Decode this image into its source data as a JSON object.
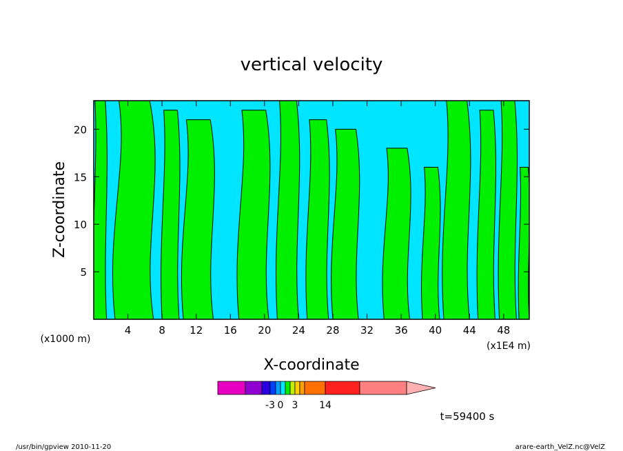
{
  "chart_data": {
    "type": "heatmap",
    "title": "vertical velocity",
    "xlabel": "X-coordinate",
    "ylabel": "Z-coordinate",
    "x_units_left": "(x1000 m)",
    "x_units_right": "(x1E4 m)",
    "x_ticks": [
      "4",
      "8",
      "12",
      "16",
      "20",
      "24",
      "28",
      "32",
      "36",
      "40",
      "44",
      "48"
    ],
    "y_ticks": [
      "5",
      "10",
      "15",
      "20"
    ],
    "xlim": [
      0,
      51
    ],
    "ylim": [
      0,
      23
    ],
    "colors": {
      "negative": "#00e5ff",
      "positive": "#00f000"
    },
    "positive_regions": [
      {
        "x": [
          0,
          1.5
        ],
        "y": [
          0,
          23
        ]
      },
      {
        "x": [
          2.5,
          7
        ],
        "y": [
          0,
          23
        ]
      },
      {
        "x": [
          8,
          10
        ],
        "y": [
          0,
          22
        ]
      },
      {
        "x": [
          10.5,
          14
        ],
        "y": [
          0,
          21
        ]
      },
      {
        "x": [
          17,
          20.5
        ],
        "y": [
          0,
          22
        ]
      },
      {
        "x": [
          21.5,
          24
        ],
        "y": [
          0,
          23
        ]
      },
      {
        "x": [
          25,
          27.5
        ],
        "y": [
          0,
          21
        ]
      },
      {
        "x": [
          28,
          31
        ],
        "y": [
          0,
          20
        ]
      },
      {
        "x": [
          34,
          37
        ],
        "y": [
          0,
          18
        ]
      },
      {
        "x": [
          38.5,
          40.5
        ],
        "y": [
          0,
          16
        ]
      },
      {
        "x": [
          41,
          44
        ],
        "y": [
          0,
          23
        ]
      },
      {
        "x": [
          45,
          47
        ],
        "y": [
          0,
          22
        ]
      },
      {
        "x": [
          47.5,
          49.5
        ],
        "y": [
          0,
          23
        ]
      },
      {
        "x": [
          49.8,
          51
        ],
        "y": [
          0,
          16
        ]
      }
    ],
    "colorbar": {
      "colors": [
        "#e800c0",
        "#9000d0",
        "#2a00e0",
        "#0040ff",
        "#00a0ff",
        "#00e5ff",
        "#00f000",
        "#c0f000",
        "#ffd000",
        "#ffa000",
        "#ff7000",
        "#ff2020",
        "#ff8080",
        "#ffb0b0"
      ],
      "labels": [
        "-3",
        "0",
        "3",
        "14"
      ]
    },
    "time_label": "t=59400 s"
  },
  "footer": {
    "left": "/usr/bin/gpview   2010-11-20",
    "right": "arare-earth_VelZ.nc@VelZ"
  }
}
